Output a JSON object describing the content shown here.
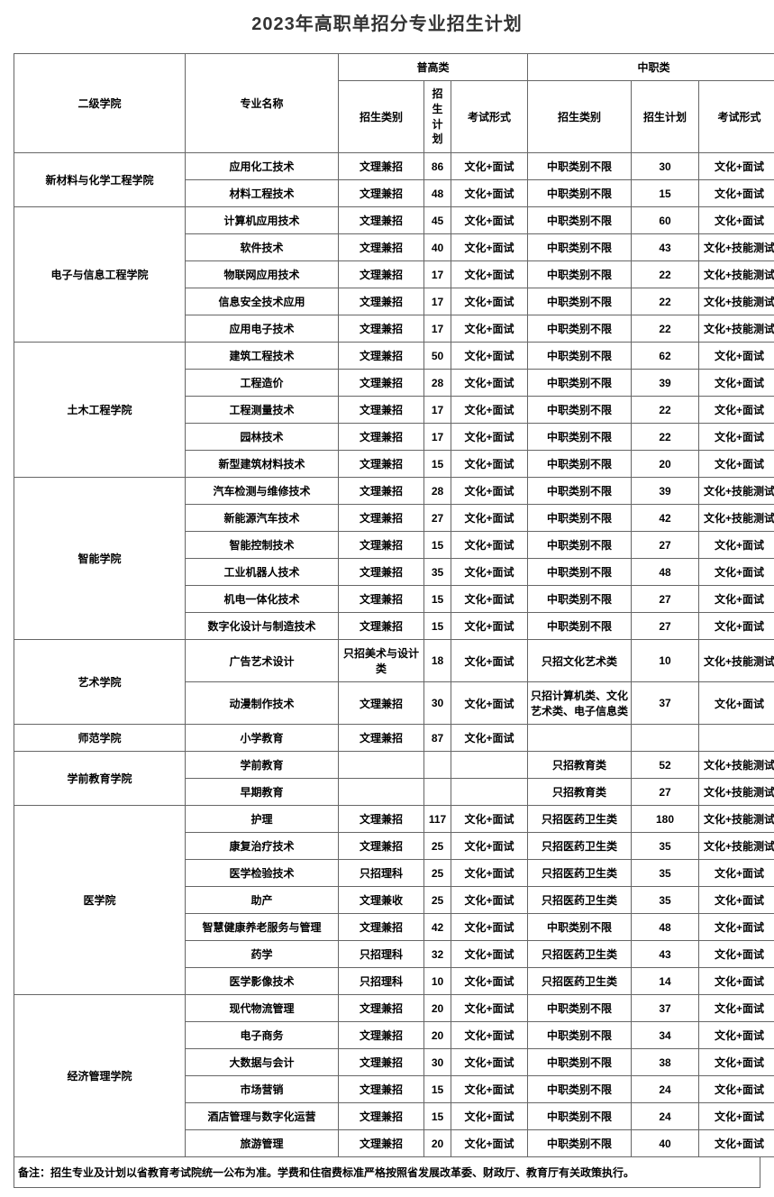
{
  "title": "2023年高职单招分专业招生计划",
  "headers": {
    "dept": "二级学院",
    "major": "专业名称",
    "group1": "普高类",
    "group2": "中职类",
    "cat": "招生类别",
    "plan": "招生计划",
    "exam": "考试形式",
    "plan_vert": "招生计划"
  },
  "depts": [
    {
      "name": "新材料与化学工程学院",
      "rowspan": 2
    },
    {
      "name": "电子与信息工程学院",
      "rowspan": 5
    },
    {
      "name": "土木工程学院",
      "rowspan": 5
    },
    {
      "name": "智能学院",
      "rowspan": 6
    },
    {
      "name": "艺术学院",
      "rowspan": 2
    },
    {
      "name": "师范学院",
      "rowspan": 1
    },
    {
      "name": "学前教育学院",
      "rowspan": 2
    },
    {
      "name": "医学院",
      "rowspan": 7
    },
    {
      "name": "经济管理学院",
      "rowspan": 6
    }
  ],
  "rows": [
    {
      "major": "应用化工技术",
      "c1": "文理兼招",
      "p1": "86",
      "e1": "文化+面试",
      "c2": "中职类别不限",
      "p2": "30",
      "e2": "文化+面试"
    },
    {
      "major": "材料工程技术",
      "c1": "文理兼招",
      "p1": "48",
      "e1": "文化+面试",
      "c2": "中职类别不限",
      "p2": "15",
      "e2": "文化+面试"
    },
    {
      "major": "计算机应用技术",
      "c1": "文理兼招",
      "p1": "45",
      "e1": "文化+面试",
      "c2": "中职类别不限",
      "p2": "60",
      "e2": "文化+面试"
    },
    {
      "major": "软件技术",
      "c1": "文理兼招",
      "p1": "40",
      "e1": "文化+面试",
      "c2": "中职类别不限",
      "p2": "43",
      "e2": "文化+技能测试"
    },
    {
      "major": "物联网应用技术",
      "c1": "文理兼招",
      "p1": "17",
      "e1": "文化+面试",
      "c2": "中职类别不限",
      "p2": "22",
      "e2": "文化+技能测试"
    },
    {
      "major": "信息安全技术应用",
      "c1": "文理兼招",
      "p1": "17",
      "e1": "文化+面试",
      "c2": "中职类别不限",
      "p2": "22",
      "e2": "文化+技能测试"
    },
    {
      "major": "应用电子技术",
      "c1": "文理兼招",
      "p1": "17",
      "e1": "文化+面试",
      "c2": "中职类别不限",
      "p2": "22",
      "e2": "文化+技能测试"
    },
    {
      "major": "建筑工程技术",
      "c1": "文理兼招",
      "p1": "50",
      "e1": "文化+面试",
      "c2": "中职类别不限",
      "p2": "62",
      "e2": "文化+面试"
    },
    {
      "major": "工程造价",
      "c1": "文理兼招",
      "p1": "28",
      "e1": "文化+面试",
      "c2": "中职类别不限",
      "p2": "39",
      "e2": "文化+面试"
    },
    {
      "major": "工程测量技术",
      "c1": "文理兼招",
      "p1": "17",
      "e1": "文化+面试",
      "c2": "中职类别不限",
      "p2": "22",
      "e2": "文化+面试"
    },
    {
      "major": "园林技术",
      "c1": "文理兼招",
      "p1": "17",
      "e1": "文化+面试",
      "c2": "中职类别不限",
      "p2": "22",
      "e2": "文化+面试"
    },
    {
      "major": "新型建筑材料技术",
      "c1": "文理兼招",
      "p1": "15",
      "e1": "文化+面试",
      "c2": "中职类别不限",
      "p2": "20",
      "e2": "文化+面试"
    },
    {
      "major": "汽车检测与维修技术",
      "c1": "文理兼招",
      "p1": "28",
      "e1": "文化+面试",
      "c2": "中职类别不限",
      "p2": "39",
      "e2": "文化+技能测试"
    },
    {
      "major": "新能源汽车技术",
      "c1": "文理兼招",
      "p1": "27",
      "e1": "文化+面试",
      "c2": "中职类别不限",
      "p2": "42",
      "e2": "文化+技能测试"
    },
    {
      "major": "智能控制技术",
      "c1": "文理兼招",
      "p1": "15",
      "e1": "文化+面试",
      "c2": "中职类别不限",
      "p2": "27",
      "e2": "文化+面试"
    },
    {
      "major": "工业机器人技术",
      "c1": "文理兼招",
      "p1": "35",
      "e1": "文化+面试",
      "c2": "中职类别不限",
      "p2": "48",
      "e2": "文化+面试"
    },
    {
      "major": "机电一体化技术",
      "c1": "文理兼招",
      "p1": "15",
      "e1": "文化+面试",
      "c2": "中职类别不限",
      "p2": "27",
      "e2": "文化+面试"
    },
    {
      "major": "数字化设计与制造技术",
      "c1": "文理兼招",
      "p1": "15",
      "e1": "文化+面试",
      "c2": "中职类别不限",
      "p2": "27",
      "e2": "文化+面试"
    },
    {
      "major": "广告艺术设计",
      "c1": "只招美术与设计类",
      "p1": "18",
      "e1": "文化+面试",
      "c2": "只招文化艺术类",
      "p2": "10",
      "e2": "文化+技能测试"
    },
    {
      "major": "动漫制作技术",
      "c1": "文理兼招",
      "p1": "30",
      "e1": "文化+面试",
      "c2": "只招计算机类、文化艺术类、电子信息类",
      "p2": "37",
      "e2": "文化+面试"
    },
    {
      "major": "小学教育",
      "c1": "文理兼招",
      "p1": "87",
      "e1": "文化+面试",
      "c2": "",
      "p2": "",
      "e2": ""
    },
    {
      "major": "学前教育",
      "c1": "",
      "p1": "",
      "e1": "",
      "c2": "只招教育类",
      "p2": "52",
      "e2": "文化+技能测试"
    },
    {
      "major": "早期教育",
      "c1": "",
      "p1": "",
      "e1": "",
      "c2": "只招教育类",
      "p2": "27",
      "e2": "文化+技能测试"
    },
    {
      "major": "护理",
      "c1": "文理兼招",
      "p1": "117",
      "e1": "文化+面试",
      "c2": "只招医药卫生类",
      "p2": "180",
      "e2": "文化+技能测试"
    },
    {
      "major": "康复治疗技术",
      "c1": "文理兼招",
      "p1": "25",
      "e1": "文化+面试",
      "c2": "只招医药卫生类",
      "p2": "35",
      "e2": "文化+技能测试"
    },
    {
      "major": "医学检验技术",
      "c1": "只招理科",
      "p1": "25",
      "e1": "文化+面试",
      "c2": "只招医药卫生类",
      "p2": "35",
      "e2": "文化+面试"
    },
    {
      "major": "助产",
      "c1": "文理兼收",
      "p1": "25",
      "e1": "文化+面试",
      "c2": "只招医药卫生类",
      "p2": "35",
      "e2": "文化+面试"
    },
    {
      "major": "智慧健康养老服务与管理",
      "c1": "文理兼招",
      "p1": "42",
      "e1": "文化+面试",
      "c2": "中职类别不限",
      "p2": "48",
      "e2": "文化+面试"
    },
    {
      "major": "药学",
      "c1": "只招理科",
      "p1": "32",
      "e1": "文化+面试",
      "c2": "只招医药卫生类",
      "p2": "43",
      "e2": "文化+面试"
    },
    {
      "major": "医学影像技术",
      "c1": "只招理科",
      "p1": "10",
      "e1": "文化+面试",
      "c2": "只招医药卫生类",
      "p2": "14",
      "e2": "文化+面试"
    },
    {
      "major": "现代物流管理",
      "c1": "文理兼招",
      "p1": "20",
      "e1": "文化+面试",
      "c2": "中职类别不限",
      "p2": "37",
      "e2": "文化+面试"
    },
    {
      "major": "电子商务",
      "c1": "文理兼招",
      "p1": "20",
      "e1": "文化+面试",
      "c2": "中职类别不限",
      "p2": "34",
      "e2": "文化+面试"
    },
    {
      "major": "大数据与会计",
      "c1": "文理兼招",
      "p1": "30",
      "e1": "文化+面试",
      "c2": "中职类别不限",
      "p2": "38",
      "e2": "文化+面试"
    },
    {
      "major": "市场营销",
      "c1": "文理兼招",
      "p1": "15",
      "e1": "文化+面试",
      "c2": "中职类别不限",
      "p2": "24",
      "e2": "文化+面试"
    },
    {
      "major": "酒店管理与数字化运营",
      "c1": "文理兼招",
      "p1": "15",
      "e1": "文化+面试",
      "c2": "中职类别不限",
      "p2": "24",
      "e2": "文化+面试"
    },
    {
      "major": "旅游管理",
      "c1": "文理兼招",
      "p1": "20",
      "e1": "文化+面试",
      "c2": "中职类别不限",
      "p2": "40",
      "e2": "文化+面试"
    }
  ],
  "note": "备注：招生专业及计划以省教育考试院统一公布为准。学费和住宿费标准严格按照省发展改革委、财政厅、教育厅有关政策执行。"
}
